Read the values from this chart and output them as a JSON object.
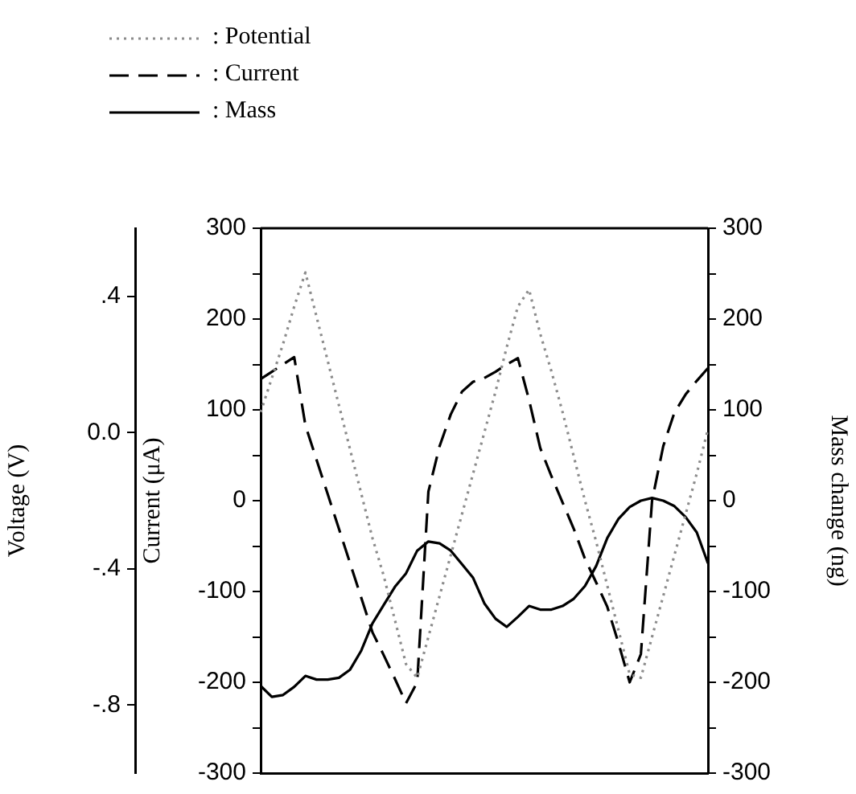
{
  "chart_data": {
    "type": "line",
    "categories": [
      null,
      null,
      null,
      null,
      null,
      null,
      null,
      null,
      null,
      null,
      null,
      null,
      null,
      null,
      null,
      null,
      null,
      null,
      null,
      null,
      null,
      null,
      null,
      null,
      null,
      null,
      null,
      null,
      null,
      null,
      null,
      null,
      null,
      null,
      null,
      null,
      null,
      null,
      null,
      null,
      null
    ],
    "series": [
      {
        "name": ": Potential",
        "color": "#8c8c8c",
        "line_style": "dotted",
        "axis": "y3",
        "values": [
          0.06,
          0.16,
          0.26,
          0.37,
          0.47,
          0.34,
          0.21,
          0.08,
          -0.05,
          -0.18,
          -0.31,
          -0.42,
          -0.55,
          -0.68,
          -0.72,
          -0.6,
          -0.48,
          -0.36,
          -0.24,
          -0.12,
          0.0,
          0.12,
          0.25,
          0.37,
          0.42,
          0.29,
          0.18,
          0.06,
          -0.07,
          -0.2,
          -0.32,
          -0.45,
          -0.58,
          -0.71,
          -0.72,
          -0.6,
          -0.48,
          -0.36,
          -0.24,
          -0.12,
          0.01
        ]
      },
      {
        "name": ": Current",
        "color": "#000000",
        "line_style": "dashed",
        "values": [
          134,
          142,
          150,
          158,
          83,
          45,
          7,
          -31,
          -69,
          -107,
          -145,
          -170,
          -196,
          -223,
          -200,
          10,
          60,
          95,
          120,
          131,
          135,
          142,
          150,
          157,
          111,
          58,
          27,
          -2,
          -31,
          -64,
          -90,
          -117,
          -157,
          -200,
          -169,
          0,
          60,
          97,
          117,
          132,
          146
        ]
      },
      {
        "name": ": Mass",
        "color": "#000000",
        "line_style": "solid",
        "axis": "y2",
        "values": [
          -204,
          -216,
          -214,
          -205,
          -193,
          -197,
          -197,
          -195,
          -186,
          -165,
          -135,
          -115,
          -95,
          -80,
          -55,
          -45,
          -47,
          -55,
          -70,
          -85,
          -113,
          -130,
          -139,
          -128,
          -116,
          -120,
          -120,
          -116,
          -108,
          -94,
          -72,
          -41,
          -20,
          -7,
          0,
          3,
          0,
          -6,
          -18,
          -35,
          -69
        ]
      }
    ],
    "ylabel": "Current (μA)",
    "y2label": "Mass change (ng)",
    "y3label": "Voltage (V)",
    "ylim": [
      -300,
      300
    ],
    "yticks": [
      -300,
      {
        "value": -250,
        "label": null
      },
      -200,
      {
        "value": -150,
        "label": null
      },
      -100,
      {
        "value": -50,
        "label": null
      },
      0,
      {
        "value": 50,
        "label": null
      },
      100,
      {
        "value": 150,
        "label": null
      },
      200,
      {
        "value": 250,
        "label": null
      },
      300
    ],
    "y2lim": [
      -300,
      300
    ],
    "y2ticks": [
      -300,
      {
        "value": -250,
        "label": null
      },
      -200,
      {
        "value": -150,
        "label": null
      },
      -100,
      {
        "value": -50,
        "label": null
      },
      0,
      {
        "value": 50,
        "label": null
      },
      100,
      {
        "value": 150,
        "label": null
      },
      200,
      {
        "value": 250,
        "label": null
      },
      300
    ],
    "y3lim": [
      -1.0,
      0.6
    ],
    "y3ticks": [
      {
        "value": -0.8,
        "label": "-.8"
      },
      {
        "value": -0.4,
        "label": "-.4"
      },
      {
        "value": 0,
        "label": "0.0"
      },
      {
        "value": 0.4,
        "label": ".4"
      }
    ],
    "grid": false,
    "legend": "top left",
    "marker": "none"
  }
}
